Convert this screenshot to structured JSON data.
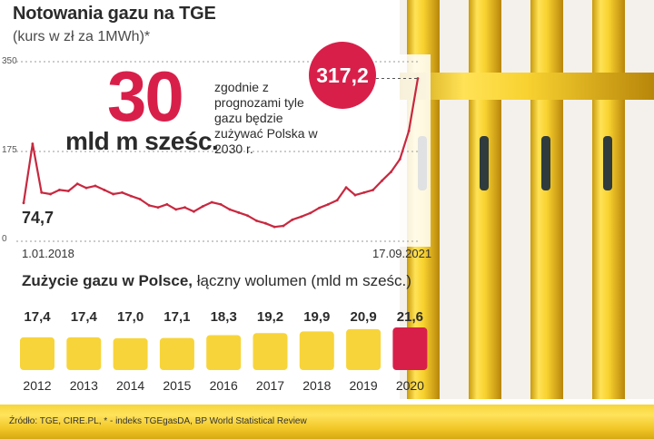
{
  "header": {
    "title": "Notowania gazu na TGE",
    "subtitle": "(kurs w zł za 1MWh)*"
  },
  "highlight": {
    "number": "30",
    "unit": "mld m sześc.",
    "note": "zgodnie z prognozami tyle gazu będzie zużywać Polska w 2030 r."
  },
  "line_chart_labels": {
    "start_value": "74,7",
    "end_value": "317,2",
    "start_date": "1.01.2018",
    "end_date": "17.09.2021",
    "y_ticks": [
      "350",
      "175",
      "0"
    ]
  },
  "bar_section": {
    "title_bold": "Zużycie gazu w Polsce,",
    "title_rest": " łączny wolumen (mld m sześc.)"
  },
  "footer": {
    "source": "Źródło: TGE, CIRE.PL, * - indeks TGEgasDA, BP World Statistical Review"
  },
  "colors": {
    "accent": "#d81f4a",
    "bar": "#f7d43a",
    "bar_highlight": "#d81f4a",
    "line": "#c8283f",
    "pipe": "#f3c928"
  },
  "chart_data": [
    {
      "type": "line",
      "title": "Notowania gazu na TGE",
      "subtitle": "(kurs w zł za 1MWh)*",
      "ylim": [
        0,
        350
      ],
      "y_ticks": [
        0,
        175,
        350
      ],
      "x": [
        "2018-01",
        "2018-02",
        "2018-03",
        "2018-04",
        "2018-05",
        "2018-06",
        "2018-07",
        "2018-08",
        "2018-09",
        "2018-10",
        "2018-11",
        "2018-12",
        "2019-01",
        "2019-02",
        "2019-03",
        "2019-04",
        "2019-05",
        "2019-06",
        "2019-07",
        "2019-08",
        "2019-09",
        "2019-10",
        "2019-11",
        "2019-12",
        "2020-01",
        "2020-02",
        "2020-03",
        "2020-04",
        "2020-05",
        "2020-06",
        "2020-07",
        "2020-08",
        "2020-09",
        "2020-10",
        "2020-11",
        "2020-12",
        "2021-01",
        "2021-02",
        "2021-03",
        "2021-04",
        "2021-05",
        "2021-06",
        "2021-07",
        "2021-08",
        "2021-09"
      ],
      "series": [
        {
          "values": [
            74.7,
            190,
            95,
            92,
            100,
            98,
            112,
            104,
            108,
            100,
            92,
            95,
            88,
            82,
            70,
            66,
            72,
            62,
            66,
            58,
            68,
            76,
            72,
            62,
            56,
            50,
            40,
            35,
            28,
            30,
            42,
            48,
            55,
            65,
            72,
            80,
            105,
            90,
            95,
            100,
            118,
            135,
            160,
            215,
            317.2
          ]
        }
      ],
      "annotations": [
        "74,7",
        "317,2"
      ],
      "x_labels_shown": [
        "1.01.2018",
        "17.09.2021"
      ],
      "grid": "dashed horizontal at 0, 175, 350"
    },
    {
      "type": "bar",
      "title": "Zużycie gazu w Polsce, łączny wolumen (mld m sześc.)",
      "categories": [
        "2012",
        "2013",
        "2014",
        "2015",
        "2016",
        "2017",
        "2018",
        "2019",
        "2020"
      ],
      "values": [
        17.4,
        17.4,
        17.0,
        17.1,
        18.3,
        19.2,
        19.9,
        20.9,
        21.6
      ],
      "value_labels": [
        "17,4",
        "17,4",
        "17,0",
        "17,1",
        "18,3",
        "19,2",
        "19,9",
        "20,9",
        "21,6"
      ],
      "highlight_category": "2020"
    }
  ]
}
